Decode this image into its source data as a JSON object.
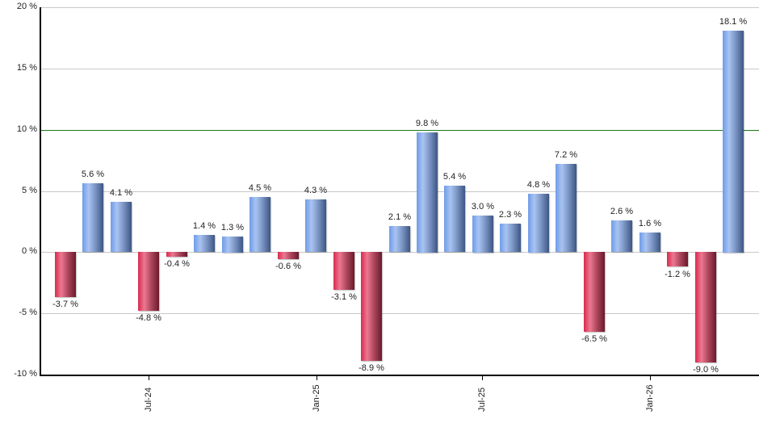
{
  "chart_data": {
    "type": "bar",
    "title": "",
    "xlabel": "",
    "ylabel": "",
    "ylim": [
      -10,
      20
    ],
    "yticks": [
      "20 %",
      "15 %",
      "10 %",
      "5 %",
      "0 %",
      "-5 %",
      "-10 %"
    ],
    "ytick_values": [
      20,
      15,
      10,
      5,
      0,
      -5,
      -10
    ],
    "reference_line": {
      "value": 10,
      "color": "#1a7a1a"
    },
    "grid": true,
    "legend": null,
    "xtick_labels": [
      "Jul-24",
      "Jan-25",
      "Jul-25",
      "Jan-26"
    ],
    "xtick_bar_positions": [
      3.25,
      9.3,
      15.25,
      21.3
    ],
    "categories": [
      "1",
      "2",
      "3",
      "4",
      "5",
      "6",
      "7",
      "8",
      "9",
      "10",
      "11",
      "12",
      "13",
      "14",
      "15",
      "16",
      "17",
      "18",
      "19",
      "20",
      "21",
      "22",
      "23",
      "24",
      "25"
    ],
    "values": [
      -3.7,
      5.6,
      4.1,
      -4.8,
      -0.4,
      1.4,
      1.3,
      4.5,
      -0.6,
      4.3,
      -3.1,
      -8.9,
      2.1,
      9.8,
      5.4,
      3.0,
      2.3,
      4.8,
      7.2,
      -6.5,
      2.6,
      1.6,
      -1.2,
      -9.0,
      18.1
    ],
    "value_labels": [
      "-3.7 %",
      "5.6 %",
      "4.1 %",
      "-4.8 %",
      "-0.4 %",
      "1.4 %",
      "1.3 %",
      "4.5 %",
      "-0.6 %",
      "4.3 %",
      "-3.1 %",
      "-8.9 %",
      "2.1 %",
      "9.8 %",
      "5.4 %",
      "3.0 %",
      "2.3 %",
      "4.8 %",
      "7.2 %",
      "-6.5 %",
      "2.6 %",
      "1.6 %",
      "-1.2 %",
      "-9.0 %",
      "18.1 %"
    ],
    "colors": {
      "positive": "#6f9be8",
      "negative": "#d82a4e"
    }
  }
}
